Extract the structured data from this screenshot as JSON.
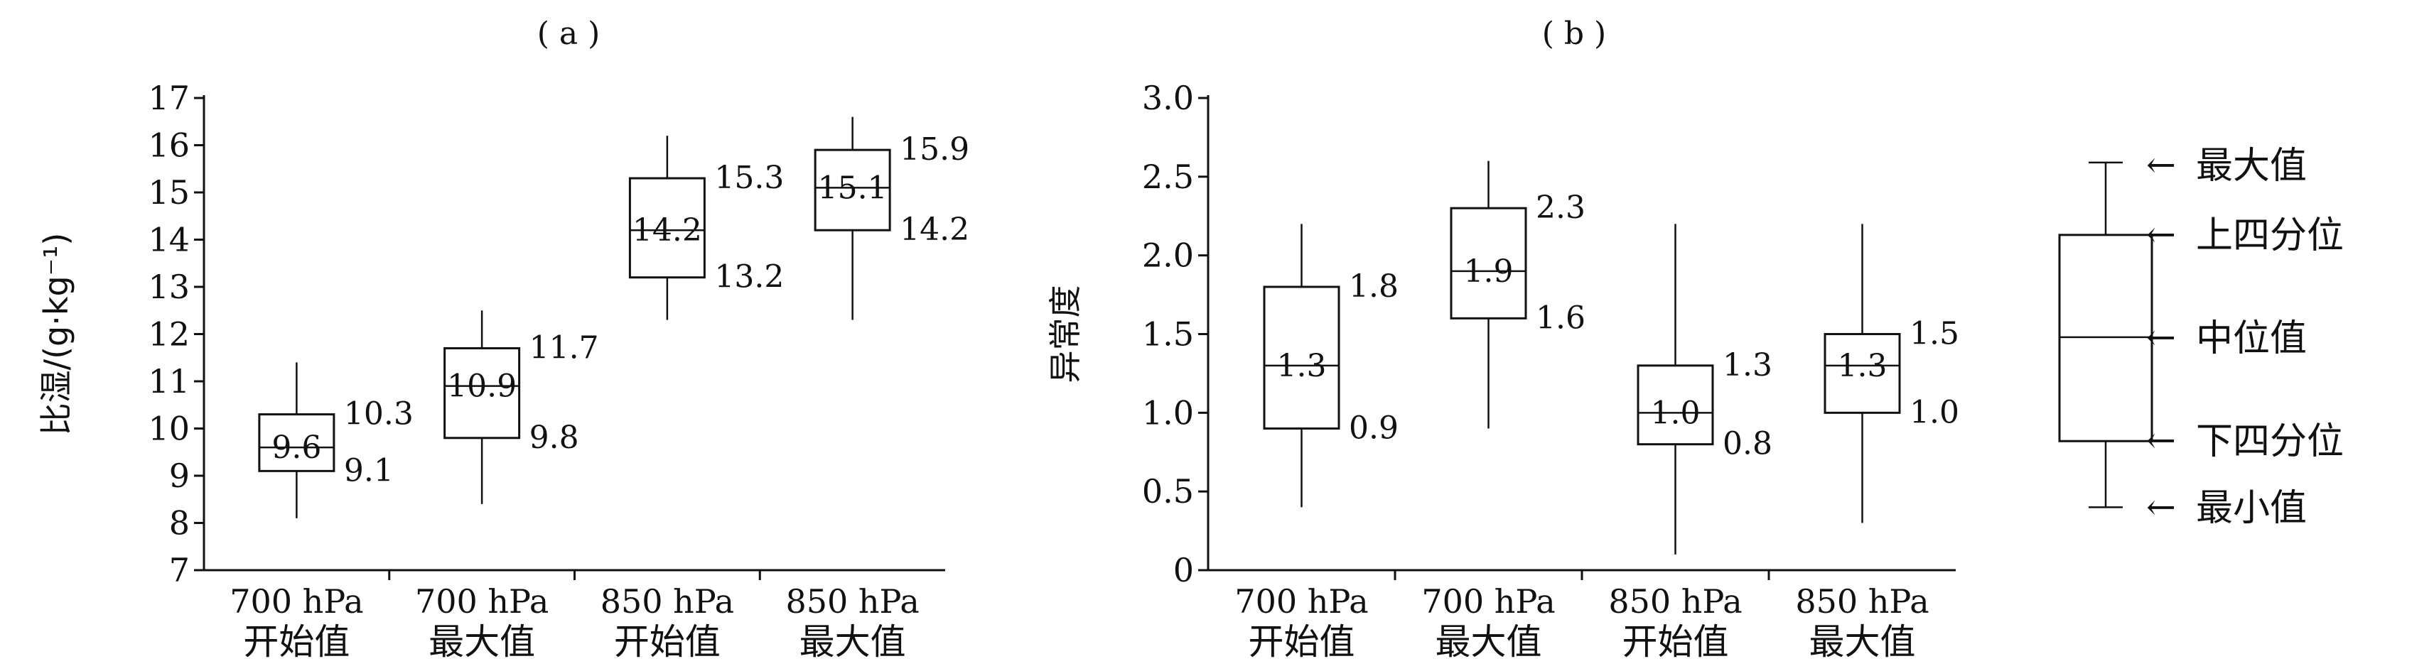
{
  "chart_data": [
    {
      "type": "box",
      "title": "( a )",
      "ylabel": "比湿/(g·kg⁻¹)",
      "ylim": [
        7,
        17
      ],
      "yticks": [
        "7",
        "8",
        "9",
        "10",
        "11",
        "12",
        "13",
        "14",
        "15",
        "16",
        "17"
      ],
      "categories": [
        [
          "700 hPa",
          "开始值"
        ],
        [
          "700 hPa",
          "最大值"
        ],
        [
          "850 hPa",
          "开始值"
        ],
        [
          "850 hPa",
          "最大值"
        ]
      ],
      "boxes": [
        {
          "min": 8.1,
          "q1": 9.1,
          "median": 9.6,
          "q3": 10.3,
          "max": 11.4,
          "median_label": "9.6",
          "q1_label": "9.1",
          "q3_label": "10.3"
        },
        {
          "min": 8.4,
          "q1": 9.8,
          "median": 10.9,
          "q3": 11.7,
          "max": 12.5,
          "median_label": "10.9",
          "q1_label": "9.8",
          "q3_label": "11.7"
        },
        {
          "min": 12.3,
          "q1": 13.2,
          "median": 14.2,
          "q3": 15.3,
          "max": 16.2,
          "median_label": "14.2",
          "q1_label": "13.2",
          "q3_label": "15.3"
        },
        {
          "min": 12.3,
          "q1": 14.2,
          "median": 15.1,
          "q3": 15.9,
          "max": 16.6,
          "median_label": "15.1",
          "q1_label": "14.2",
          "q3_label": "15.9"
        }
      ]
    },
    {
      "type": "box",
      "title": "( b )",
      "ylabel": "异常度",
      "ylim": [
        0,
        3.0
      ],
      "yticks": [
        "0",
        "0.5",
        "1.0",
        "1.5",
        "2.0",
        "2.5",
        "3.0"
      ],
      "categories": [
        [
          "700 hPa",
          "开始值"
        ],
        [
          "700 hPa",
          "最大值"
        ],
        [
          "850 hPa",
          "开始值"
        ],
        [
          "850 hPa",
          "最大值"
        ]
      ],
      "boxes": [
        {
          "min": 0.4,
          "q1": 0.9,
          "median": 1.3,
          "q3": 1.8,
          "max": 2.2,
          "median_label": "1.3",
          "q1_label": "0.9",
          "q3_label": "1.8"
        },
        {
          "min": 0.9,
          "q1": 1.6,
          "median": 1.9,
          "q3": 2.3,
          "max": 2.6,
          "median_label": "1.9",
          "q1_label": "1.6",
          "q3_label": "2.3"
        },
        {
          "min": 0.1,
          "q1": 0.8,
          "median": 1.0,
          "q3": 1.3,
          "max": 2.2,
          "median_label": "1.0",
          "q1_label": "0.8",
          "q3_label": "1.3"
        },
        {
          "min": 0.3,
          "q1": 1.0,
          "median": 1.3,
          "q3": 1.5,
          "max": 2.2,
          "median_label": "1.3",
          "q1_label": "1.0",
          "q3_label": "1.5"
        }
      ]
    }
  ],
  "legend": {
    "box": {
      "min": 0.4,
      "q1": 0.82,
      "median": 1.48,
      "q3": 2.13,
      "max": 2.59
    },
    "labels": {
      "max": "最大值",
      "q3": "上四分位",
      "median": "中位值",
      "q1": "下四分位",
      "min": "最小值"
    },
    "arrow": "←"
  }
}
